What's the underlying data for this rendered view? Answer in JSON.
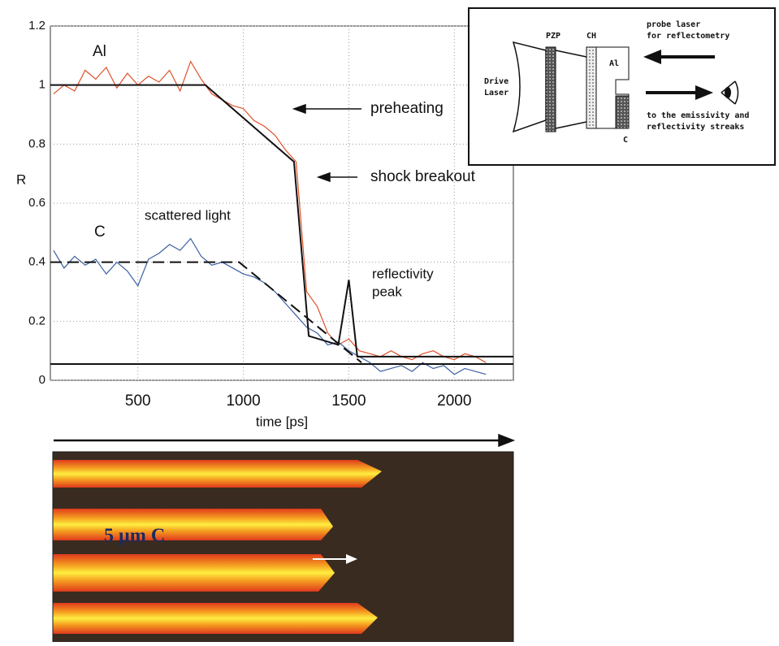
{
  "chart_data": {
    "type": "line",
    "xlabel": "time [ps]",
    "ylabel": "R",
    "xlim": [
      85,
      2280
    ],
    "ylim": [
      0,
      1.2
    ],
    "xticks": [
      500,
      1000,
      1500,
      2000
    ],
    "yticks": [
      0,
      0.2,
      0.4,
      0.6,
      0.8,
      1,
      1.2
    ],
    "grid": true,
    "series": [
      {
        "name": "Al",
        "color": "#e0502a",
        "x": [
          100,
          150,
          200,
          250,
          300,
          350,
          400,
          450,
          500,
          550,
          600,
          650,
          700,
          750,
          800,
          850,
          900,
          950,
          1000,
          1050,
          1100,
          1150,
          1200,
          1250,
          1300,
          1350,
          1400,
          1450,
          1500,
          1550,
          1600,
          1650,
          1700,
          1750,
          1800,
          1850,
          1900,
          1950,
          2000,
          2050,
          2100,
          2150
        ],
        "values": [
          0.97,
          1.0,
          0.98,
          1.05,
          1.02,
          1.06,
          0.99,
          1.04,
          1.0,
          1.03,
          1.01,
          1.05,
          0.98,
          1.08,
          1.02,
          0.97,
          0.95,
          0.93,
          0.92,
          0.88,
          0.86,
          0.83,
          0.78,
          0.74,
          0.3,
          0.25,
          0.16,
          0.12,
          0.14,
          0.1,
          0.09,
          0.08,
          0.1,
          0.08,
          0.07,
          0.09,
          0.1,
          0.08,
          0.07,
          0.09,
          0.08,
          0.06
        ]
      },
      {
        "name": "C",
        "color": "#3a5fa0",
        "x": [
          100,
          150,
          200,
          250,
          300,
          350,
          400,
          450,
          500,
          550,
          600,
          650,
          700,
          750,
          800,
          850,
          900,
          950,
          1000,
          1050,
          1100,
          1150,
          1200,
          1250,
          1300,
          1350,
          1400,
          1450,
          1500,
          1550,
          1600,
          1650,
          1700,
          1750,
          1800,
          1850,
          1900,
          1950,
          2000,
          2050,
          2100,
          2150
        ],
        "values": [
          0.44,
          0.38,
          0.42,
          0.39,
          0.41,
          0.36,
          0.4,
          0.37,
          0.32,
          0.41,
          0.43,
          0.46,
          0.44,
          0.48,
          0.42,
          0.39,
          0.4,
          0.38,
          0.36,
          0.35,
          0.33,
          0.3,
          0.26,
          0.22,
          0.18,
          0.16,
          0.12,
          0.13,
          0.1,
          0.08,
          0.06,
          0.03,
          0.04,
          0.05,
          0.03,
          0.06,
          0.04,
          0.05,
          0.02,
          0.04,
          0.03,
          0.02
        ]
      },
      {
        "color": "#111111",
        "x": [
          85,
          820,
          1240,
          1310,
          1450,
          1500,
          1540,
          2280
        ],
        "values": [
          1,
          1,
          0.74,
          0.15,
          0.12,
          0.34,
          0.08,
          0.08
        ]
      },
      {
        "color": "#111111",
        "x": [
          85,
          2280
        ],
        "values": [
          0.055,
          0.055
        ]
      },
      {
        "color": "#111111",
        "dash": true,
        "x": [
          85,
          980,
          1560
        ],
        "values": [
          0.4,
          0.4,
          0.06
        ]
      }
    ],
    "annotations": {
      "preheating": "preheating",
      "shock": "shock breakout",
      "scattered": "scattered light",
      "peak": [
        "reflectivity",
        "peak"
      ]
    }
  },
  "inset": {
    "pzp": "PZP",
    "ch": "CH",
    "al": "Al",
    "c": "C",
    "drive": [
      "Drive",
      "Laser"
    ],
    "probe": [
      "probe laser",
      "for reflectometry"
    ],
    "streaks": [
      "to the emissivity and",
      "reflectivity streaks"
    ]
  },
  "image": {
    "label": "5 µm C"
  }
}
